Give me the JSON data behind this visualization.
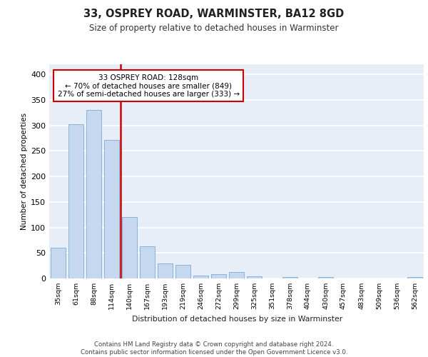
{
  "title1": "33, OSPREY ROAD, WARMINSTER, BA12 8GD",
  "title2": "Size of property relative to detached houses in Warminster",
  "xlabel": "Distribution of detached houses by size in Warminster",
  "ylabel": "Number of detached properties",
  "categories": [
    "35sqm",
    "61sqm",
    "88sqm",
    "114sqm",
    "140sqm",
    "167sqm",
    "193sqm",
    "219sqm",
    "246sqm",
    "272sqm",
    "299sqm",
    "325sqm",
    "351sqm",
    "378sqm",
    "404sqm",
    "430sqm",
    "457sqm",
    "483sqm",
    "509sqm",
    "536sqm",
    "562sqm"
  ],
  "values": [
    60,
    303,
    330,
    272,
    120,
    63,
    30,
    27,
    6,
    8,
    12,
    4,
    0,
    3,
    0,
    3,
    0,
    0,
    0,
    0,
    3
  ],
  "bar_color": "#c5d8f0",
  "bar_edge_color": "#7aaad4",
  "vline_x": 3.5,
  "vline_color": "#cc0000",
  "annotation_text": "33 OSPREY ROAD: 128sqm\n← 70% of detached houses are smaller (849)\n27% of semi-detached houses are larger (333) →",
  "annotation_box_color": "#ffffff",
  "annotation_box_edge": "#cc0000",
  "ylim": [
    0,
    420
  ],
  "yticks": [
    0,
    50,
    100,
    150,
    200,
    250,
    300,
    350,
    400
  ],
  "footer": "Contains HM Land Registry data © Crown copyright and database right 2024.\nContains public sector information licensed under the Open Government Licence v3.0.",
  "bg_color": "#e8eef7",
  "grid_color": "#ffffff"
}
